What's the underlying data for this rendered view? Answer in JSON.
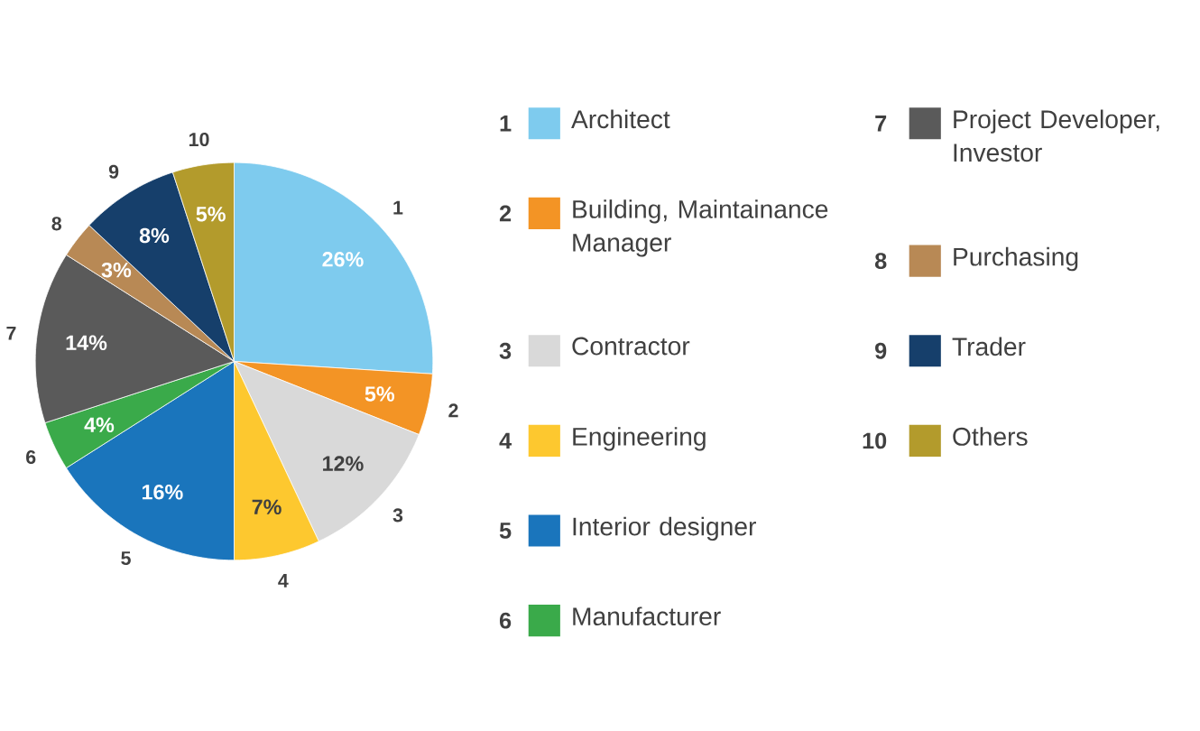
{
  "chart_data": {
    "type": "pie",
    "categories": [
      "Architect",
      "Building, Maintainance Manager",
      "Contractor",
      "Engineering",
      "Interior designer",
      "Manufacturer",
      "Project Developer, Investor",
      "Purchasing",
      "Trader",
      "Others"
    ],
    "values": [
      26,
      5,
      12,
      7,
      16,
      4,
      14,
      3,
      8,
      5
    ],
    "value_labels": [
      "26%",
      "5%",
      "12%",
      "7%",
      "16%",
      "4%",
      "14%",
      "3%",
      "8%",
      "5%"
    ],
    "colors": [
      "#7ecbee",
      "#f39425",
      "#d9d9d9",
      "#fdc82f",
      "#1a75bc",
      "#3aaa4a",
      "#5a5a5a",
      "#b88955",
      "#163f6b",
      "#b39b2c"
    ],
    "annotations": [
      "1",
      "2",
      "3",
      "4",
      "5",
      "6",
      "7",
      "8",
      "9",
      "10"
    ],
    "legend": "right"
  }
}
